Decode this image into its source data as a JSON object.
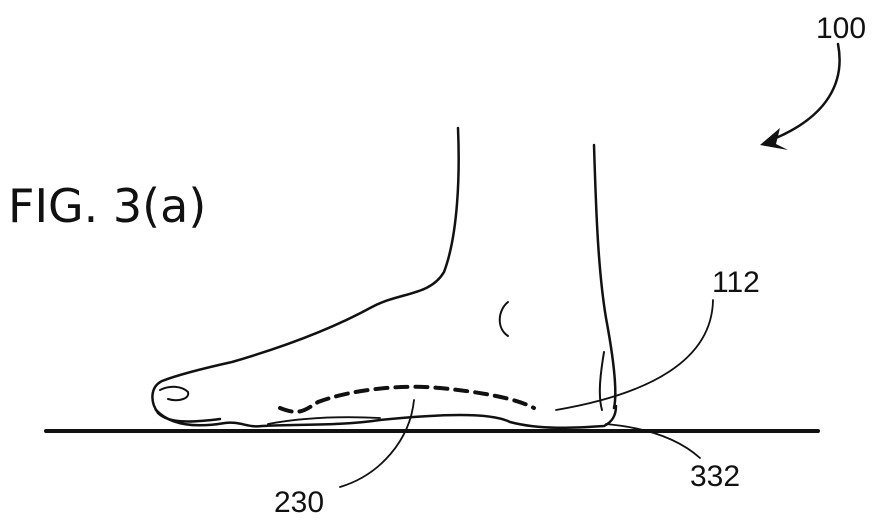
{
  "figure": {
    "title": "FIG. 3(a)",
    "labels": {
      "device": "100",
      "heel_region": "112",
      "arch_support": "230",
      "heel_contact": "332"
    }
  },
  "colors": {
    "ink": "#111111",
    "background": "#ffffff"
  }
}
